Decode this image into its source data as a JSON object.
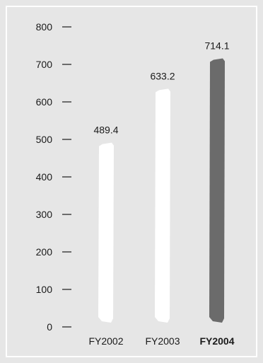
{
  "chart_data": {
    "type": "bar",
    "title": "",
    "xlabel": "",
    "ylabel": "",
    "categories": [
      "FY2002",
      "FY2003",
      "FY2004"
    ],
    "values": [
      489.4,
      633.2,
      714.1
    ],
    "value_labels": [
      "489.4",
      "633.2",
      "714.1"
    ],
    "yticks": [
      "0",
      "100",
      "200",
      "300",
      "400",
      "500",
      "600",
      "700",
      "800"
    ],
    "ylim": [
      0,
      800
    ],
    "grid": false,
    "highlight_category": "FY2004",
    "colors": {
      "background": "#e6e6e6",
      "bar": "#ffffff",
      "highlight_bar": "#6b6b6b",
      "text": "#1a1a1a"
    }
  }
}
